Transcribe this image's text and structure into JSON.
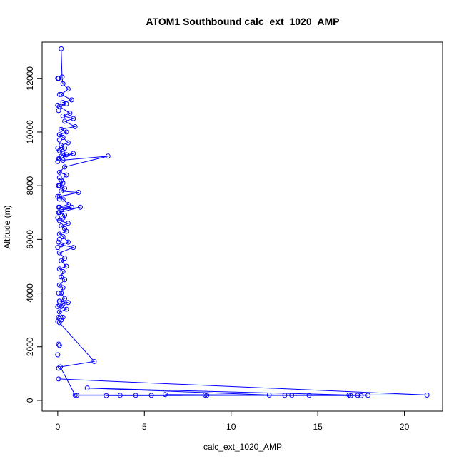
{
  "chart_data": {
    "type": "scatter",
    "title": "ATOM1 Southbound calc_ext_1020_AMP",
    "xlabel": "calc_ext_1020_AMP",
    "ylabel": "Altitude (m)",
    "xlim": [
      -0.9,
      22.2
    ],
    "ylim": [
      -400,
      13350
    ],
    "x_ticks": [
      0,
      5,
      10,
      15,
      20
    ],
    "y_ticks": [
      0,
      2000,
      4000,
      6000,
      8000,
      10000,
      12000
    ],
    "grid": false,
    "legend": "none",
    "color": "#0000ff",
    "series": [
      {
        "x": [
          0.2,
          0.25,
          0.3,
          0.6,
          0.2,
          0.8,
          0.3,
          0.5,
          0.1,
          0.7,
          0.3,
          0.9,
          0.4,
          1.0,
          0.2,
          0.5,
          0.1,
          0.3,
          0.6,
          0.2,
          0.4,
          0.1,
          0.3,
          0.5,
          0.2,
          0.9,
          0.1,
          0.3,
          2.9,
          0.4,
          0.1,
          0.5,
          0.2,
          0.3,
          0.1,
          0.4,
          0.2,
          1.2,
          0.1,
          0.3,
          0.6,
          0.1,
          0.8,
          0.2,
          1.3,
          0.1,
          0.4,
          0.3,
          0.1,
          0.6,
          0.2,
          0.4,
          0.5,
          0.1,
          0.3,
          0.6,
          0.2,
          0.9,
          0.1,
          0.4,
          0.2,
          0.5,
          0.1,
          0.3,
          0.2,
          0.4,
          0.1,
          0.3,
          0.2,
          0.4,
          0.1,
          0.6,
          0.3,
          0.1,
          0.2,
          0.5,
          0.1,
          0.3,
          0.2,
          0.1,
          2.1,
          0.15,
          1.0,
          12.2,
          1.7,
          16.8,
          1.1,
          17.3,
          2.8,
          13.1,
          3.6,
          17.5,
          4.5,
          13.5,
          5.4,
          14.5,
          6.2,
          16.9,
          8.6,
          17.9,
          8.5,
          21.3,
          0.05
        ],
        "y": [
          13100,
          12050,
          11800,
          11600,
          11400,
          11200,
          11100,
          11050,
          10950,
          10700,
          10600,
          10500,
          10400,
          10200,
          10100,
          10000,
          9900,
          9800,
          9600,
          9500,
          9400,
          9300,
          9200,
          9150,
          9100,
          9200,
          9000,
          8950,
          9100,
          8700,
          8500,
          8400,
          8200,
          8100,
          8000,
          7900,
          7800,
          7750,
          7600,
          7500,
          7300,
          7200,
          7200,
          7100,
          7200,
          7000,
          6900,
          6800,
          6700,
          6600,
          6500,
          6400,
          6300,
          6200,
          6100,
          5900,
          5800,
          5700,
          5500,
          5300,
          5200,
          5000,
          4900,
          4800,
          4600,
          4500,
          4300,
          4200,
          4000,
          3800,
          3700,
          3650,
          3600,
          3550,
          3500,
          3400,
          3300,
          3100,
          3000,
          2900,
          1450,
          1250,
          200,
          200,
          460,
          200,
          190,
          190,
          180,
          190,
          190,
          180,
          190,
          190,
          190,
          190,
          220,
          180,
          190,
          190,
          200,
          200,
          800
        ],
        "extra_points_x": [
          0.05,
          0.1,
          0.0,
          0.05,
          0.1,
          0.0,
          0.05,
          0.0,
          0.1,
          0.05,
          0.0,
          0.1,
          0.05,
          0.0,
          0.1,
          0.05,
          0.0,
          0.05,
          0.1,
          0.0,
          0.05,
          0.1,
          0.0,
          0.05,
          0.1,
          0.0,
          0.05,
          0.0,
          0.1,
          0.05
        ],
        "extra_points_y": [
          12000,
          11400,
          11000,
          10800,
          9700,
          9400,
          9000,
          8900,
          8300,
          8000,
          7600,
          7500,
          7000,
          6800,
          6000,
          5900,
          5700,
          4000,
          3700,
          3500,
          3100,
          3050,
          2950,
          2100,
          2050,
          1700,
          1200,
          12000,
          9900,
          7200
        ]
      }
    ]
  }
}
